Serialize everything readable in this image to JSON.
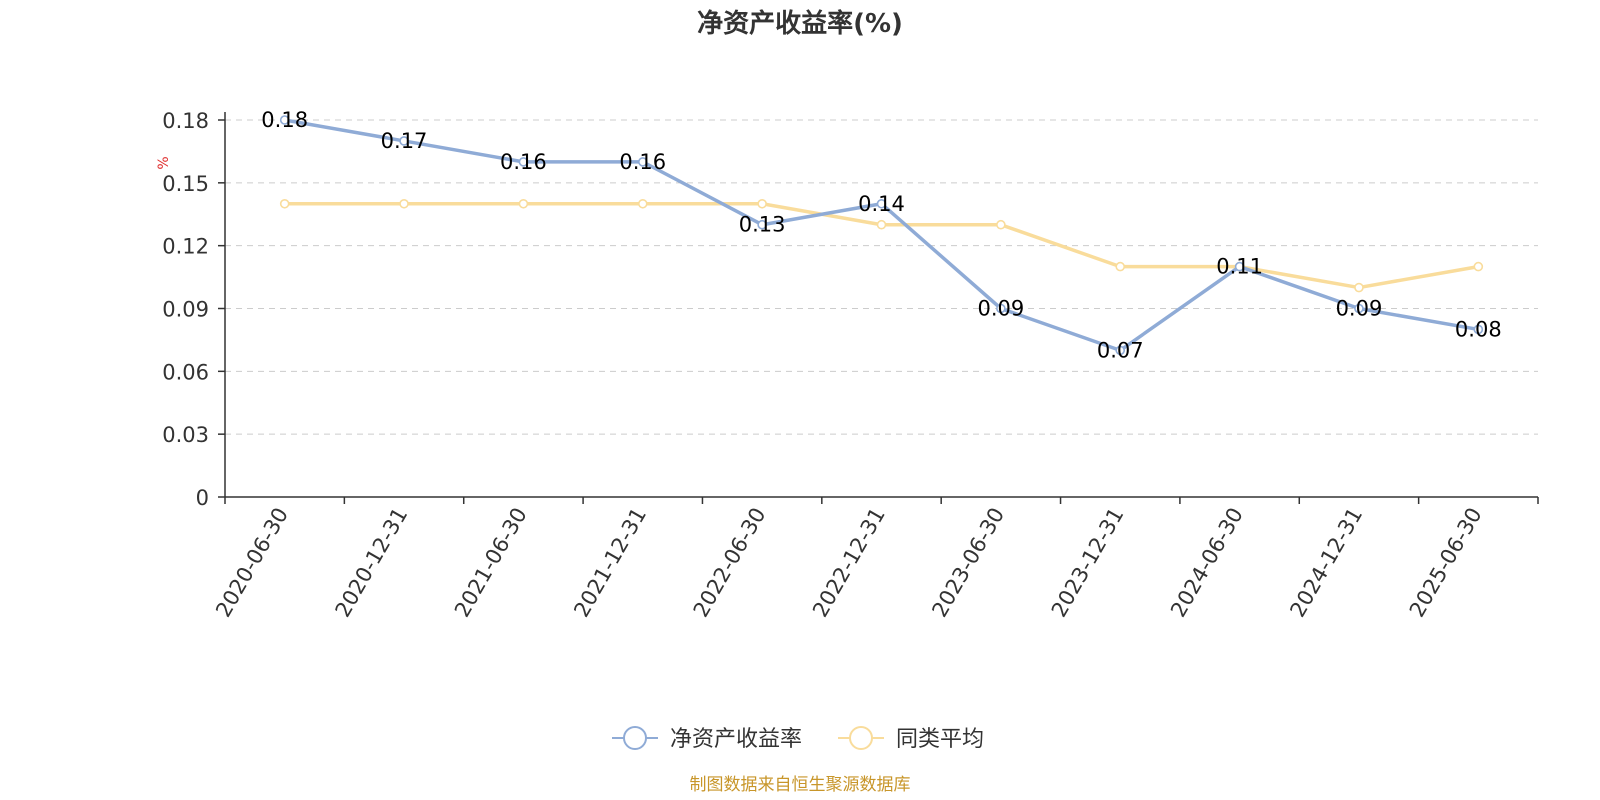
{
  "chart_data": {
    "type": "line",
    "title": "净资产收益率(%)",
    "ylabel": "%",
    "xlabel": "",
    "ylim": [
      0,
      0.18
    ],
    "yticks": [
      "0",
      "0.03",
      "0.06",
      "0.09",
      "0.12",
      "0.15",
      "0.18"
    ],
    "categories": [
      "2020-06-30",
      "2020-12-31",
      "2021-06-30",
      "2021-12-31",
      "2022-06-30",
      "2022-12-31",
      "2023-06-30",
      "2023-12-31",
      "2024-06-30",
      "2024-12-31",
      "2025-06-30"
    ],
    "grid": true,
    "legend_position": "bottom-center",
    "series": [
      {
        "name": "净资产收益率",
        "color": "#8fabd6",
        "values": [
          0.18,
          0.17,
          0.16,
          0.16,
          0.13,
          0.14,
          0.09,
          0.07,
          0.11,
          0.09,
          0.08
        ],
        "data_labels": [
          "0.18",
          "0.17",
          "0.16",
          "0.16",
          "0.13",
          "0.14",
          "0.09",
          "0.07",
          "0.11",
          "0.09",
          "0.08"
        ]
      },
      {
        "name": "同类平均",
        "color": "#f9dc9b",
        "values": [
          0.14,
          0.14,
          0.14,
          0.14,
          0.14,
          0.13,
          0.13,
          0.11,
          0.11,
          0.1,
          0.11
        ]
      }
    ]
  },
  "footer": {
    "source": "制图数据来自恒生聚源数据库"
  }
}
